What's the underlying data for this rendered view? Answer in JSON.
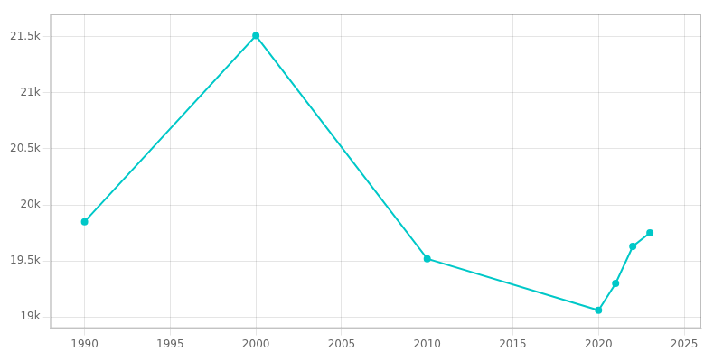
{
  "chart_data": {
    "type": "line",
    "x": [
      1990,
      2000,
      2010,
      2020,
      2021,
      2022,
      2023
    ],
    "values": [
      19850,
      21510,
      19520,
      19060,
      19300,
      19630,
      19750
    ],
    "color": "#00c8c8",
    "marker": "circle",
    "xlim": [
      1988,
      2026
    ],
    "ylim": [
      18900,
      21700
    ],
    "xticks": [
      1990,
      1995,
      2000,
      2005,
      2010,
      2015,
      2020,
      2025
    ],
    "yticks": [
      {
        "value": 19000,
        "label": "19k"
      },
      {
        "value": 19500,
        "label": "19.5k"
      },
      {
        "value": 20000,
        "label": "20k"
      },
      {
        "value": 20500,
        "label": "20.5k"
      },
      {
        "value": 21000,
        "label": "21k"
      },
      {
        "value": 21500,
        "label": "21.5k"
      }
    ],
    "grid": true
  }
}
